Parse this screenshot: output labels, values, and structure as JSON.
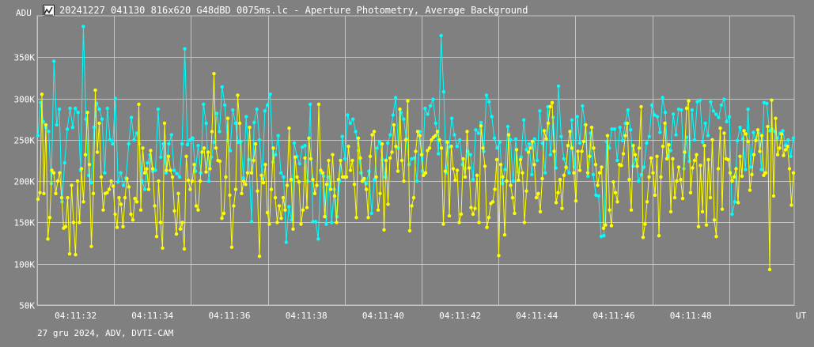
{
  "window": {
    "title": "20241227_041130_816x620_G48dBD_0075ms.lc - Aperture Photometry, Average Background",
    "icon": "chart-app-icon",
    "footer": "27 gru 2024, ADV, DVTI-CAM"
  },
  "chart_data": {
    "type": "line",
    "title": "20241227_041130_816x620_G48dBD_0075ms.lc - Aperture Photometry, Average Background",
    "xlabel": "UT",
    "ylabel": "ADU",
    "ylim": [
      50000,
      400000
    ],
    "xlim": [
      "04:11:31.1",
      "04:11:50.8"
    ],
    "grid": true,
    "y_ticks": [
      "50K",
      "100K",
      "150K",
      "200K",
      "250K",
      "300K",
      "350K"
    ],
    "y_tick_values": [
      50000,
      100000,
      150000,
      200000,
      250000,
      300000,
      350000
    ],
    "x_ticks": [
      "04:11:32",
      "04:11:34",
      "04:11:36",
      "04:11:38",
      "04:11:40",
      "04:11:42",
      "04:11:44",
      "04:11:46",
      "04:11:48"
    ],
    "series": [
      {
        "color": "#00ffff",
        "values": [
          255000,
          295000,
          272000,
          265000,
          260000,
          197000,
          345000,
          268000,
          287000,
          175000,
          222000,
          263000,
          288000,
          265000,
          288000,
          283000,
          213000,
          387000,
          275000,
          207000,
          198000,
          265000,
          294000,
          287000,
          275000,
          210000,
          288000,
          250000,
          245000,
          300000,
          199000,
          210000,
          195000,
          204000,
          245000,
          277000,
          250000,
          258000,
          245000,
          200000,
          190000,
          222000,
          232000,
          212000,
          213000,
          287000,
          229000,
          245000,
          210000,
          245000,
          256000,
          213000,
          209000,
          205000,
          245000,
          360000,
          244000,
          250000,
          252000,
          212000,
          243000,
          210000,
          293000,
          270000,
          200000,
          229000,
          247000,
          282000,
          260000,
          314000,
          292000,
          249000,
          237000,
          286000,
          270000,
          247000,
          248000,
          204000,
          278000,
          226000,
          151000,
          271000,
          287000,
          250000,
          203000,
          285000,
          292000,
          305000,
          223000,
          232000,
          255000,
          210000,
          205000,
          126000,
          169000,
          153000,
          246000,
          230000,
          221000,
          241000,
          243000,
          200000,
          293000,
          151000,
          151000,
          130000,
          210000,
          206000,
          148000,
          205000,
          150000,
          190000,
          157000,
          200000,
          254000,
          227000,
          280000,
          270000,
          275000,
          260000,
          237000,
          210000,
          200000,
          197000,
          212000,
          161000,
          202000,
          240000,
          248000,
          226000,
          205000,
          246000,
          256000,
          280000,
          301000,
          240000,
          283000,
          275000,
          251000,
          220000,
          227000,
          228000,
          200000,
          260000,
          212000,
          288000,
          281000,
          291000,
          299000,
          270000,
          233000,
          376000,
          308000,
          210000,
          241000,
          276000,
          256000,
          242000,
          250000,
          220000,
          215000,
          236000,
          232000,
          202000,
          262000,
          258000,
          271000,
          236000,
          304000,
          296000,
          278000,
          252000,
          240000,
          247000,
          197000,
          214000,
          266000,
          250000,
          200000,
          251000,
          211000,
          229000,
          274000,
          238000,
          245000,
          208000,
          251000,
          225000,
          285000,
          246000,
          210000,
          290000,
          232000,
          277000,
          216000,
          315000,
          254000,
          227000,
          216000,
          210000,
          274000,
          217000,
          278000,
          246000,
          291000,
          268000,
          206000,
          258000,
          208000,
          183000,
          182000,
          133000,
          134000,
          248000,
          240000,
          263000,
          263000,
          225000,
          265000,
          249000,
          270000,
          286000,
          262000,
          218000,
          226000,
          200000,
          208000,
          217000,
          246000,
          254000,
          292000,
          280000,
          278000,
          259000,
          301000,
          283000,
          230000,
          237000,
          281000,
          256000,
          287000,
          286000,
          215000,
          253000,
          224000,
          286000,
          250000,
          296000,
          298000,
          247000,
          270000,
          255000,
          296000,
          285000,
          281000,
          277000,
          292000,
          299000,
          272000,
          278000,
          160000,
          175000,
          249000,
          265000,
          251000,
          214000,
          287000,
          217000,
          259000,
          250000,
          258000,
          214000,
          295000,
          294000,
          261000,
          263000,
          260000,
          252000,
          258000,
          261000,
          243000,
          250000,
          230000,
          252000
        ]
      },
      {
        "color": "#ffff00",
        "values": [
          178000,
          186000,
          305000,
          185000,
          268000,
          130000,
          156000,
          213000,
          210000,
          185000,
          200000,
          210000,
          180000,
          143000,
          145000,
          180000,
          112000,
          195000,
          150000,
          111000,
          200000,
          150000,
          215000,
          175000,
          232000,
          283000,
          220000,
          121000,
          185000,
          310000,
          235000,
          270000,
          205000,
          165000,
          185000,
          186000,
          190000,
          200000,
          194000,
          160000,
          144000,
          180000,
          172000,
          145000,
          180000,
          203000,
          193000,
          160000,
          153000,
          179000,
          175000,
          293000,
          165000,
          240000,
          210000,
          215000,
          190000,
          237000,
          215000,
          170000,
          133000,
          200000,
          150000,
          119000,
          270000,
          213000,
          230000,
          213000,
          205000,
          164000,
          136000,
          185000,
          142000,
          150000,
          118000,
          230000,
          201000,
          190000,
          200000,
          220000,
          170000,
          165000,
          200000,
          235000,
          240000,
          211000,
          235000,
          215000,
          260000,
          330000,
          240000,
          225000,
          224000,
          155000,
          161000,
          205000,
          276000,
          183000,
          120000,
          170000,
          190000,
          304000,
          270000,
          185000,
          200000,
          196000,
          210000,
          265000,
          210000,
          225000,
          245000,
          188000,
          109000,
          207000,
          198000,
          220000,
          162000,
          148000,
          190000,
          240000,
          180000,
          150000,
          170000,
          155000,
          180000,
          165000,
          195000,
          264000,
          202000,
          142000,
          229000,
          205000,
          199000,
          148000,
          165000,
          228000,
          168000,
          252000,
          227000,
          202000,
          185000,
          195000,
          293000,
          213000,
          210000,
          157000,
          196000,
          225000,
          190000,
          232000,
          182000,
          150000,
          202000,
          225000,
          205000,
          205000,
          205000,
          242000,
          213000,
          225000,
          196000,
          156000,
          252000,
          228000,
          200000,
          203000,
          190000,
          156000,
          230000,
          256000,
          260000,
          205000,
          165000,
          185000,
          245000,
          141000,
          225000,
          172000,
          228000,
          235000,
          268000,
          242000,
          212000,
          287000,
          225000,
          200000,
          250000,
          297000,
          140000,
          170000,
          180000,
          236000,
          260000,
          255000,
          232000,
          207000,
          210000,
          237000,
          240000,
          250000,
          253000,
          255000,
          260000,
          250000,
          240000,
          148000,
          212000,
          247000,
          158000,
          242000,
          215000,
          201000,
          213000,
          150000,
          160000,
          227000,
          205000,
          260000,
          216000,
          168000,
          160000,
          167000,
          207000,
          150000,
          267000,
          240000,
          218000,
          144000,
          156000,
          173000,
          175000,
          190000,
          226000,
          110000,
          220000,
          205000,
          135000,
          200000,
          256000,
          195000,
          180000,
          161000,
          238000,
          201000,
          226000,
          210000,
          150000,
          188000,
          235000,
          240000,
          248000,
          220000,
          180000,
          185000,
          163000,
          203000,
          261000,
          251000,
          270000,
          290000,
          295000,
          236000,
          174000,
          186000,
          202000,
          167000,
          207000,
          217000,
          243000,
          260000,
          240000,
          210000,
          176000,
          236000,
          213000,
          236000,
          248000,
          268000,
          210000,
          230000,
          265000,
          240000,
          220000,
          195000,
          210000,
          217000,
          143000,
          147000,
          255000,
          165000,
          146000,
          199000,
          186000,
          175000,
          220000,
          219000,
          233000,
          255000,
          270000,
          202000,
          165000,
          243000,
          232000,
          218000,
          240000,
          290000,
          132000,
          148000,
          175000,
          205000,
          228000,
          210000,
          183000,
          230000,
          134000,
          205000,
          242000,
          270000,
          227000,
          244000,
          163000,
          227000,
          180000,
          200000,
          217000,
          202000,
          179000,
          235000,
          288000,
          297000,
          186000,
          216000,
          225000,
          232000,
          145000,
          219000,
          163000,
          243000,
          147000,
          226000,
          180000,
          250000,
          153000,
          133000,
          215000,
          264000,
          166000,
          258000,
          227000,
          226000,
          210000,
          200000,
          205000,
          215000,
          174000,
          230000,
          206000,
          261000,
          257000,
          248000,
          189000,
          208000,
          232000,
          249000,
          262000,
          236000,
          255000,
          207000,
          210000,
          266000,
          93000,
          298000,
          182000,
          276000,
          232000,
          240000,
          257000,
          231000,
          238000,
          242000,
          215000,
          171000,
          210000
        ]
      }
    ]
  }
}
